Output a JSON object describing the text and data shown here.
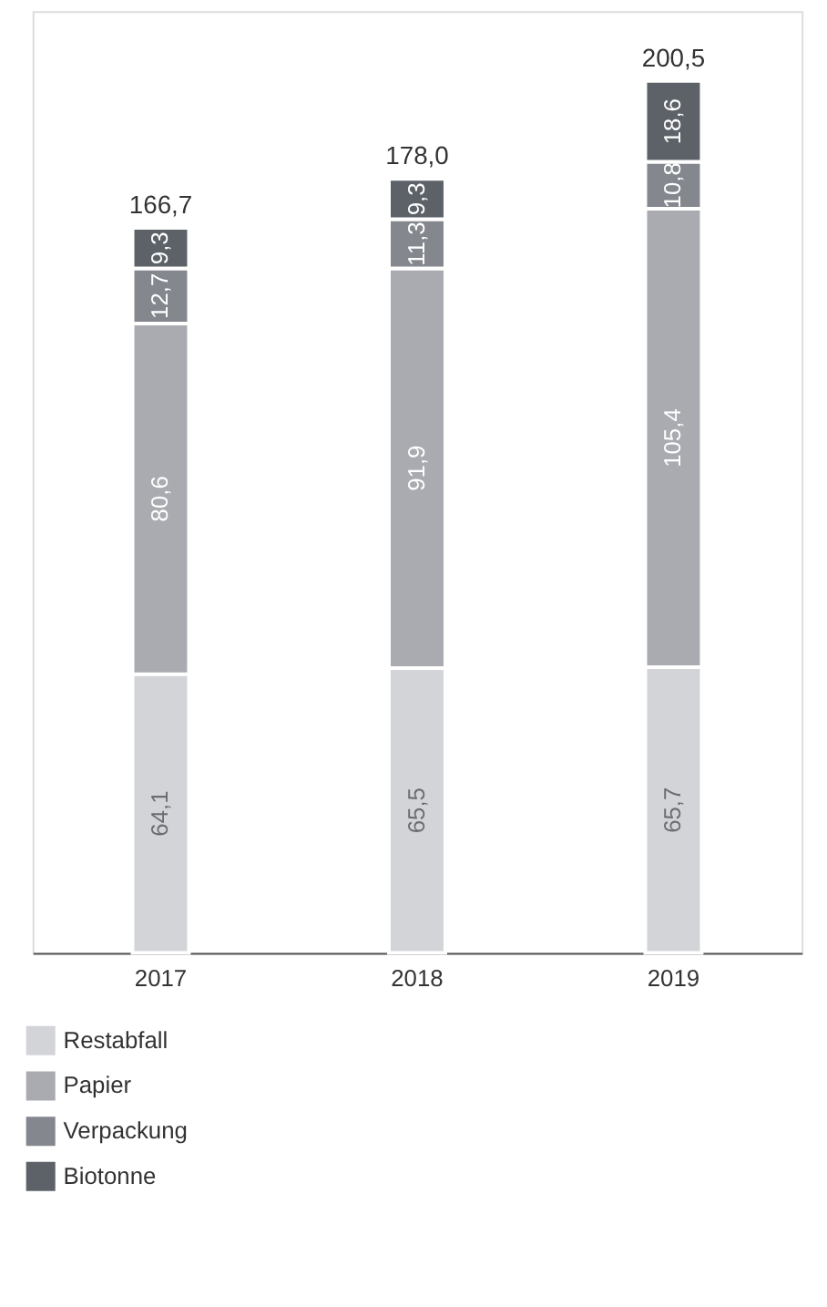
{
  "chart_data": {
    "type": "bar",
    "stacked": true,
    "categories": [
      "2017",
      "2018",
      "2019"
    ],
    "series": [
      {
        "name": "Restabfall",
        "color": "#d3d4d8",
        "values": [
          64.1,
          65.5,
          65.7
        ],
        "value_labels": [
          "64,1",
          "65,5",
          "65,7"
        ]
      },
      {
        "name": "Papier",
        "color": "#a9abb1",
        "values": [
          80.6,
          91.9,
          105.4
        ],
        "value_labels": [
          "80,6",
          "91,9",
          "105,4"
        ]
      },
      {
        "name": "Verpackung",
        "color": "#84878d",
        "values": [
          12.7,
          11.3,
          10.8
        ],
        "value_labels": [
          "12,7",
          "11,3",
          "10,8"
        ]
      },
      {
        "name": "Biotonne",
        "color": "#5d6269",
        "values": [
          9.3,
          9.3,
          18.6
        ],
        "value_labels": [
          "9,3",
          "9,3",
          "18,6"
        ]
      }
    ],
    "totals": [
      "166,7",
      "178,0",
      "200,5"
    ],
    "legend": "bottom left",
    "grid": false
  }
}
